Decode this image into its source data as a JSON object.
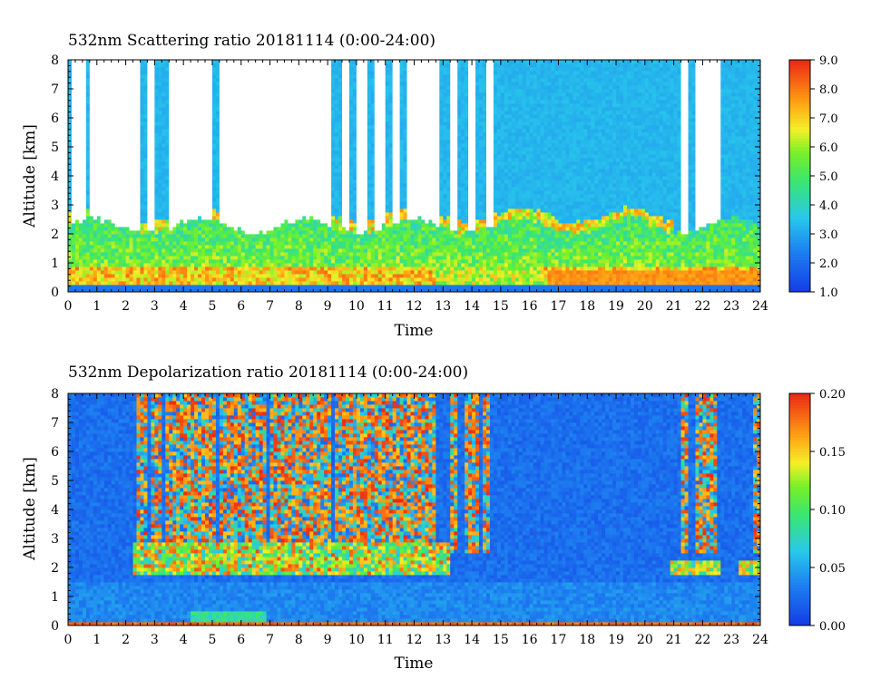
{
  "chart_data": [
    {
      "type": "heatmap",
      "title": "532nm Scattering ratio  20181114 (0:00-24:00)",
      "xlabel": "Time",
      "ylabel": "Altitude [km]",
      "xlim": [
        0,
        24
      ],
      "ylim": [
        0,
        8
      ],
      "x_ticks": [
        "0",
        "1",
        "2",
        "3",
        "4",
        "5",
        "6",
        "7",
        "8",
        "9",
        "10",
        "11",
        "12",
        "13",
        "14",
        "15",
        "16",
        "17",
        "18",
        "19",
        "20",
        "21",
        "22",
        "23",
        "24"
      ],
      "y_ticks": [
        "0",
        "1",
        "2",
        "3",
        "4",
        "5",
        "6",
        "7",
        "8"
      ],
      "colorbar": {
        "range": [
          1.0,
          9.0
        ],
        "ticks": [
          "1.0",
          "2.0",
          "3.0",
          "4.0",
          "5.0",
          "6.0",
          "7.0",
          "8.0",
          "9.0"
        ]
      },
      "background_level": 2.5,
      "boundary_layer_top_km": 2.2,
      "cloud_band_km": [
        1.6,
        2.6
      ],
      "no_signal_periods_h": [
        [
          0.15,
          0.6
        ],
        [
          0.8,
          2.5
        ],
        [
          2.75,
          3.05
        ],
        [
          3.45,
          5.05
        ],
        [
          5.2,
          6.95
        ],
        [
          7.05,
          9.15
        ],
        [
          9.55,
          9.8
        ],
        [
          10.05,
          10.35
        ],
        [
          10.6,
          11.0
        ],
        [
          11.25,
          11.55
        ],
        [
          11.75,
          12.85
        ],
        [
          13.25,
          13.5
        ],
        [
          13.9,
          14.15
        ],
        [
          14.45,
          14.7
        ],
        [
          21.3,
          21.5
        ],
        [
          21.75,
          22.6
        ]
      ]
    },
    {
      "type": "heatmap",
      "title": "532nm Depolarization ratio  20181114 (0:00-24:00)",
      "xlabel": "Time",
      "ylabel": "Altitude [km]",
      "xlim": [
        0,
        24
      ],
      "ylim": [
        0,
        8
      ],
      "x_ticks": [
        "0",
        "1",
        "2",
        "3",
        "4",
        "5",
        "6",
        "7",
        "8",
        "9",
        "10",
        "11",
        "12",
        "13",
        "14",
        "15",
        "16",
        "17",
        "18",
        "19",
        "20",
        "21",
        "22",
        "23",
        "24"
      ],
      "y_ticks": [
        "0",
        "1",
        "2",
        "3",
        "4",
        "5",
        "6",
        "7",
        "8"
      ],
      "colorbar": {
        "range": [
          0.0,
          0.2
        ],
        "ticks": [
          "0.00",
          "0.05",
          "0.10",
          "0.15",
          "0.20"
        ]
      },
      "background_level": 0.02,
      "noisy_periods_h": [
        [
          2.4,
          2.7
        ],
        [
          2.9,
          3.2
        ],
        [
          3.4,
          3.6
        ],
        [
          3.6,
          5.1
        ],
        [
          5.3,
          6.9
        ],
        [
          7.0,
          9.1
        ],
        [
          9.2,
          10.0
        ],
        [
          10.0,
          10.6
        ],
        [
          10.6,
          11.0
        ],
        [
          11.0,
          11.5
        ],
        [
          11.5,
          12.8
        ],
        [
          13.2,
          13.5
        ],
        [
          13.8,
          14.2
        ],
        [
          14.4,
          14.6
        ],
        [
          21.3,
          21.5
        ],
        [
          21.8,
          22.5
        ],
        [
          23.8,
          24.0
        ]
      ],
      "cloud_band_km": [
        1.7,
        2.9
      ],
      "surface_layer_km": [
        0.0,
        0.15
      ]
    }
  ]
}
